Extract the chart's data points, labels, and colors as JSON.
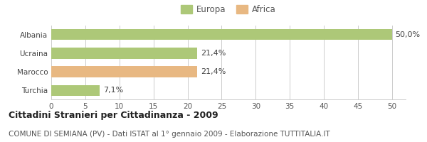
{
  "categories": [
    "Albania",
    "Ucraina",
    "Marocco",
    "Turchia"
  ],
  "values": [
    50.0,
    21.4,
    21.4,
    7.1
  ],
  "labels": [
    "50,0%",
    "21,4%",
    "21,4%",
    "7,1%"
  ],
  "colors": [
    "#adc878",
    "#adc878",
    "#e8b882",
    "#adc878"
  ],
  "legend": [
    {
      "label": "Europa",
      "color": "#adc878"
    },
    {
      "label": "Africa",
      "color": "#e8b882"
    }
  ],
  "xlim": [
    0,
    52
  ],
  "xticks": [
    0,
    5,
    10,
    15,
    20,
    25,
    30,
    35,
    40,
    45,
    50
  ],
  "title": "Cittadini Stranieri per Cittadinanza - 2009",
  "subtitle": "COMUNE DI SEMIANA (PV) - Dati ISTAT al 1° gennaio 2009 - Elaborazione TUTTITALIA.IT",
  "background_color": "#ffffff",
  "bar_height": 0.6,
  "grid_color": "#cccccc",
  "title_fontsize": 9,
  "subtitle_fontsize": 7.5,
  "label_fontsize": 8,
  "tick_fontsize": 7.5,
  "legend_fontsize": 8.5
}
